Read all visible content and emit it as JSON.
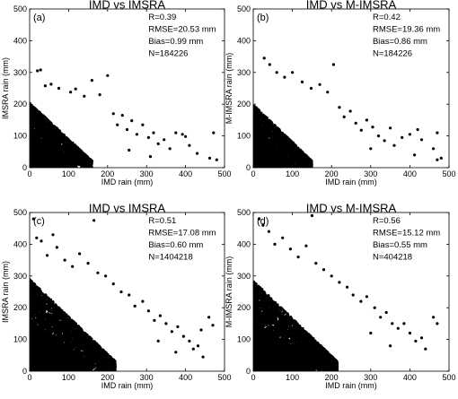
{
  "chart_data": [
    {
      "type": "scatter",
      "panel": "(a)",
      "title": "IMD vs IMSRA",
      "xlabel": "IMD rain (mm)",
      "ylabel": "IMSRA rain (mm)",
      "xlim": [
        0,
        500
      ],
      "ylim": [
        0,
        500
      ],
      "xticks": [
        0,
        100,
        200,
        300,
        400,
        500
      ],
      "yticks": [
        0,
        100,
        200,
        300,
        400,
        500
      ],
      "stats": [
        "R=0.39",
        "RMSE=20.53 mm",
        "Bias=0.99 mm",
        "N=184226"
      ],
      "points": [
        [
          20,
          305
        ],
        [
          28,
          308
        ],
        [
          40,
          258
        ],
        [
          55,
          263
        ],
        [
          75,
          250
        ],
        [
          105,
          238
        ],
        [
          118,
          248
        ],
        [
          140,
          225
        ],
        [
          160,
          275
        ],
        [
          180,
          230
        ],
        [
          200,
          290
        ],
        [
          215,
          170
        ],
        [
          225,
          135
        ],
        [
          238,
          165
        ],
        [
          250,
          120
        ],
        [
          262,
          148
        ],
        [
          275,
          105
        ],
        [
          290,
          135
        ],
        [
          305,
          95
        ],
        [
          318,
          110
        ],
        [
          330,
          75
        ],
        [
          345,
          88
        ],
        [
          360,
          60
        ],
        [
          375,
          110
        ],
        [
          392,
          105
        ],
        [
          400,
          98
        ],
        [
          410,
          70
        ],
        [
          430,
          45
        ],
        [
          462,
          30
        ],
        [
          472,
          110
        ],
        [
          480,
          25
        ],
        [
          310,
          35
        ],
        [
          255,
          55
        ]
      ],
      "dense": {
        "xmax": 160,
        "ymax": 205,
        "count": 2600
      }
    },
    {
      "type": "scatter",
      "panel": "(b)",
      "title": "IMD vs M-IMSRA",
      "xlabel": "IMD rain (mm)",
      "ylabel": "M-IMSRA rain (mm)",
      "xlim": [
        0,
        500
      ],
      "ylim": [
        0,
        500
      ],
      "xticks": [
        0,
        100,
        200,
        300,
        400,
        500
      ],
      "yticks": [
        0,
        100,
        200,
        300,
        400,
        500
      ],
      "stats": [
        "R=0.42",
        "RMSE=19.36 mm",
        "Bias=0.86 mm",
        "N=184226"
      ],
      "points": [
        [
          28,
          345
        ],
        [
          42,
          325
        ],
        [
          60,
          300
        ],
        [
          80,
          285
        ],
        [
          100,
          300
        ],
        [
          125,
          270
        ],
        [
          148,
          250
        ],
        [
          170,
          262
        ],
        [
          190,
          238
        ],
        [
          205,
          325
        ],
        [
          220,
          190
        ],
        [
          232,
          160
        ],
        [
          248,
          178
        ],
        [
          262,
          140
        ],
        [
          276,
          118
        ],
        [
          290,
          150
        ],
        [
          305,
          128
        ],
        [
          320,
          100
        ],
        [
          335,
          85
        ],
        [
          350,
          125
        ],
        [
          360,
          70
        ],
        [
          380,
          95
        ],
        [
          400,
          105
        ],
        [
          412,
          40
        ],
        [
          430,
          88
        ],
        [
          460,
          60
        ],
        [
          470,
          25
        ],
        [
          480,
          30
        ],
        [
          300,
          60
        ],
        [
          420,
          120
        ],
        [
          470,
          110
        ]
      ],
      "dense": {
        "xmax": 150,
        "ymax": 200,
        "count": 2400
      }
    },
    {
      "type": "scatter",
      "panel": "(c)",
      "title": "IMD vs IMSRA",
      "xlabel": "IMD rain (mm)",
      "ylabel": "IMSRA rain (mm)",
      "xlim": [
        0,
        500
      ],
      "ylim": [
        0,
        500
      ],
      "xticks": [
        0,
        100,
        200,
        300,
        400,
        500
      ],
      "yticks": [
        0,
        100,
        200,
        300,
        400,
        500
      ],
      "stats": [
        "R=0.51",
        "RMSE=17.08 mm",
        "Bias=0.60 mm",
        "N=1404218"
      ],
      "points": [
        [
          10,
          480
        ],
        [
          18,
          420
        ],
        [
          30,
          410
        ],
        [
          45,
          365
        ],
        [
          60,
          430
        ],
        [
          70,
          390
        ],
        [
          90,
          350
        ],
        [
          110,
          330
        ],
        [
          128,
          370
        ],
        [
          150,
          340
        ],
        [
          165,
          475
        ],
        [
          175,
          310
        ],
        [
          195,
          300
        ],
        [
          215,
          275
        ],
        [
          235,
          250
        ],
        [
          255,
          240
        ],
        [
          270,
          205
        ],
        [
          290,
          220
        ],
        [
          305,
          190
        ],
        [
          320,
          160
        ],
        [
          335,
          175
        ],
        [
          350,
          150
        ],
        [
          365,
          125
        ],
        [
          380,
          140
        ],
        [
          395,
          110
        ],
        [
          410,
          95
        ],
        [
          420,
          70
        ],
        [
          432,
          80
        ],
        [
          445,
          45
        ],
        [
          440,
          130
        ],
        [
          460,
          170
        ],
        [
          470,
          145
        ],
        [
          375,
          60
        ],
        [
          330,
          95
        ]
      ],
      "dense": {
        "xmax": 220,
        "ymax": 290,
        "count": 4200
      }
    },
    {
      "type": "scatter",
      "panel": "(d)",
      "title": "IMD vs M-IMSRA",
      "xlabel": "IMD rain (mm)",
      "ylabel": "M-IMSRA rain (mm)",
      "xlim": [
        0,
        500
      ],
      "ylim": [
        0,
        500
      ],
      "xticks": [
        0,
        100,
        200,
        300,
        400,
        500
      ],
      "yticks": [
        0,
        100,
        200,
        300,
        400,
        500
      ],
      "stats": [
        "R=0.56",
        "RMSE=15.12 mm",
        "Bias=0.55 mm",
        "N=404218"
      ],
      "points": [
        [
          15,
          480
        ],
        [
          25,
          460
        ],
        [
          40,
          440
        ],
        [
          55,
          400
        ],
        [
          75,
          420
        ],
        [
          95,
          385
        ],
        [
          115,
          360
        ],
        [
          135,
          395
        ],
        [
          150,
          490
        ],
        [
          160,
          340
        ],
        [
          180,
          320
        ],
        [
          200,
          300
        ],
        [
          220,
          280
        ],
        [
          240,
          265
        ],
        [
          255,
          240
        ],
        [
          275,
          220
        ],
        [
          290,
          235
        ],
        [
          310,
          200
        ],
        [
          325,
          170
        ],
        [
          340,
          185
        ],
        [
          355,
          150
        ],
        [
          370,
          135
        ],
        [
          385,
          150
        ],
        [
          400,
          120
        ],
        [
          415,
          95
        ],
        [
          430,
          105
        ],
        [
          440,
          70
        ],
        [
          460,
          170
        ],
        [
          470,
          150
        ],
        [
          350,
          80
        ],
        [
          300,
          120
        ]
      ],
      "dense": {
        "xmax": 215,
        "ymax": 285,
        "count": 4200
      }
    }
  ]
}
